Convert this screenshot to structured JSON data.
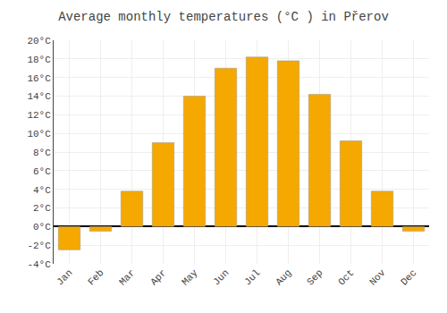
{
  "chart_data": {
    "type": "bar",
    "title": "Average monthly temperatures (°C ) in Přerov",
    "categories": [
      "Jan",
      "Feb",
      "Mar",
      "Apr",
      "May",
      "Jun",
      "Jul",
      "Aug",
      "Sep",
      "Oct",
      "Nov",
      "Dec"
    ],
    "values": [
      -2.5,
      -0.5,
      3.8,
      9.0,
      14.0,
      17.0,
      18.2,
      17.8,
      14.2,
      9.2,
      3.8,
      -0.5
    ],
    "color": "#F5A800",
    "ylim": [
      -4,
      20
    ],
    "yticks": [
      {
        "value": -4,
        "label": "-4°C"
      },
      {
        "value": -2,
        "label": "-2°C"
      },
      {
        "value": 0,
        "label": "0°C"
      },
      {
        "value": 2,
        "label": "2°C"
      },
      {
        "value": 4,
        "label": "4°C"
      },
      {
        "value": 6,
        "label": "6°C"
      },
      {
        "value": 8,
        "label": "8°C"
      },
      {
        "value": 10,
        "label": "10°C"
      },
      {
        "value": 12,
        "label": "12°C"
      },
      {
        "value": 14,
        "label": "14°C"
      },
      {
        "value": 16,
        "label": "16°C"
      },
      {
        "value": 18,
        "label": "18°C"
      },
      {
        "value": 20,
        "label": "20°C"
      }
    ],
    "grid": true
  }
}
